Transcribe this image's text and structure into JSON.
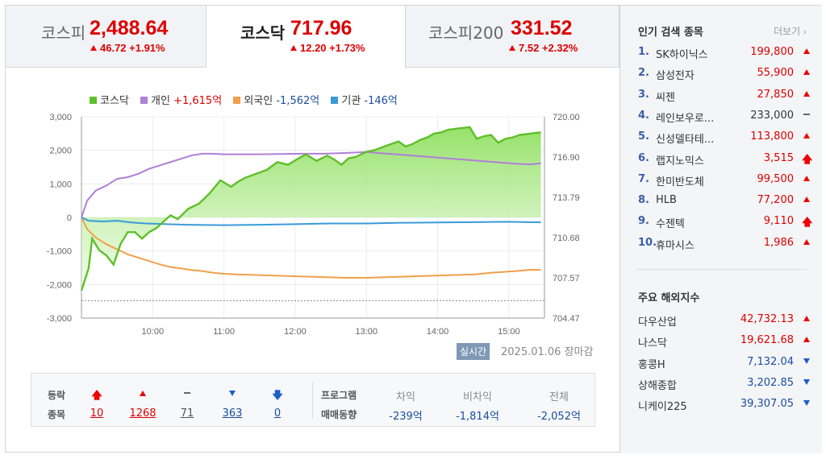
{
  "tabs": [
    {
      "name": "코스피",
      "value": "2,488.64",
      "change": "46.72 +1.91%"
    },
    {
      "name": "코스닥",
      "value": "717.96",
      "change": "12.20 +1.73%"
    },
    {
      "name": "코스피200",
      "value": "331.52",
      "change": "7.52 +2.32%"
    }
  ],
  "legend": {
    "kosdaq": "코스닥",
    "individual": "개인",
    "individual_val": "+1,615억",
    "foreign": "외국인",
    "foreign_val": "-1,562억",
    "institution": "기관",
    "institution_val": "-146억"
  },
  "realtime_badge": "실시간",
  "date_text": "2025.01.06 장마감",
  "breadth": {
    "label1": "등락",
    "label2": "종목",
    "counts": [
      "10",
      "1268",
      "71",
      "363",
      "0"
    ]
  },
  "program": {
    "label1": "프로그램",
    "label2": "매매동향",
    "headers": [
      "차익",
      "비차익",
      "전체"
    ],
    "values": [
      "-239억",
      "-1,814억",
      "-2,052억"
    ]
  },
  "popular": {
    "title": "인기 검색 종목",
    "more": "더보기",
    "items": [
      {
        "rank": "1.",
        "name": "SK하이닉스",
        "price": "199,800",
        "mark": "up"
      },
      {
        "rank": "2.",
        "name": "삼성전자",
        "price": "55,900",
        "mark": "up"
      },
      {
        "rank": "3.",
        "name": "씨젠",
        "price": "27,850",
        "mark": "up"
      },
      {
        "rank": "4.",
        "name": "레인보우로...",
        "price": "233,000",
        "mark": "flat"
      },
      {
        "rank": "5.",
        "name": "신성델타테...",
        "price": "113,800",
        "mark": "up"
      },
      {
        "rank": "6.",
        "name": "랩지노믹스",
        "price": "3,515",
        "mark": "upper"
      },
      {
        "rank": "7.",
        "name": "한미반도체",
        "price": "99,500",
        "mark": "up"
      },
      {
        "rank": "8.",
        "name": "HLB",
        "price": "77,200",
        "mark": "up"
      },
      {
        "rank": "9.",
        "name": "수젠텍",
        "price": "9,110",
        "mark": "upper"
      },
      {
        "rank": "10.",
        "name": "휴마시스",
        "price": "1,986",
        "mark": "up"
      }
    ]
  },
  "overseas": {
    "title": "주요 해외지수",
    "items": [
      {
        "name": "다우산업",
        "price": "42,732.13",
        "dir": "up"
      },
      {
        "name": "나스닥",
        "price": "19,621.68",
        "dir": "up"
      },
      {
        "name": "홍콩H",
        "price": "7,132.04",
        "dir": "down"
      },
      {
        "name": "상해종합",
        "price": "3,202.85",
        "dir": "down"
      },
      {
        "name": "니케이225",
        "price": "39,307.05",
        "dir": "down"
      }
    ]
  },
  "colors": {
    "kosdaq": "#5fbf2a",
    "individual": "#b07fd8",
    "foreign": "#f0a04b",
    "institution": "#3a9ad9",
    "up": "#dd0000",
    "down": "#1a4ea0"
  },
  "chart_data": {
    "type": "line",
    "left_axis_ticks": [
      "3,000",
      "2,000",
      "1,000",
      "0",
      "-1,000",
      "-2,000",
      "-3,000"
    ],
    "right_axis_ticks": [
      "720.00",
      "716.90",
      "713.79",
      "710.68",
      "707.57",
      "704.47"
    ],
    "x_ticks": [
      "10:00",
      "11:00",
      "12:00",
      "13:00",
      "14:00",
      "15:00"
    ],
    "left_ylim": [
      -3000,
      3000
    ],
    "right_ylim": [
      704.47,
      720.0
    ],
    "grid": true,
    "legend_position": "top-left",
    "series": [
      {
        "name": "코스닥",
        "axis": "right",
        "area": true,
        "x": [
          9.0,
          9.1,
          9.15,
          9.25,
          9.35,
          9.45,
          9.55,
          9.65,
          9.75,
          9.85,
          9.95,
          10.05,
          10.15,
          10.25,
          10.35,
          10.5,
          10.65,
          10.8,
          10.95,
          11.1,
          11.2,
          11.3,
          11.4,
          11.5,
          11.6,
          11.75,
          11.9,
          12.05,
          12.15,
          12.3,
          12.45,
          12.55,
          12.65,
          12.75,
          12.85,
          13.0,
          13.1,
          13.2,
          13.3,
          13.45,
          13.55,
          13.65,
          13.75,
          13.85,
          13.95,
          14.05,
          14.15,
          14.3,
          14.45,
          14.55,
          14.65,
          14.75,
          14.85,
          14.95,
          15.05,
          15.15,
          15.3,
          15.45
        ],
        "values": [
          706.6,
          708.3,
          710.6,
          709.7,
          709.3,
          708.6,
          710.2,
          711.1,
          711.1,
          710.6,
          711.1,
          711.4,
          711.9,
          712.4,
          712.1,
          712.9,
          713.3,
          714.1,
          715.1,
          714.6,
          715.0,
          715.3,
          715.5,
          715.7,
          715.9,
          716.5,
          716.3,
          716.8,
          717.1,
          716.6,
          717.0,
          716.7,
          716.3,
          716.8,
          716.9,
          717.3,
          717.4,
          717.6,
          717.8,
          718.1,
          717.7,
          717.9,
          718.2,
          718.4,
          718.7,
          718.8,
          719.0,
          719.1,
          719.2,
          718.3,
          718.5,
          718.6,
          718.0,
          718.3,
          718.4,
          718.6,
          718.7,
          718.8
        ]
      },
      {
        "name": "개인",
        "axis": "left",
        "x": [
          9.0,
          9.08,
          9.2,
          9.35,
          9.5,
          9.65,
          9.8,
          9.95,
          10.1,
          10.25,
          10.4,
          10.55,
          10.7,
          10.85,
          11.0,
          11.2,
          11.5,
          11.8,
          12.1,
          12.4,
          12.7,
          13.0,
          13.3,
          13.6,
          13.9,
          14.2,
          14.5,
          14.8,
          15.1,
          15.3,
          15.45
        ],
        "values": [
          0,
          500,
          800,
          950,
          1150,
          1200,
          1300,
          1450,
          1550,
          1650,
          1750,
          1850,
          1900,
          1900,
          1880,
          1880,
          1880,
          1890,
          1900,
          1900,
          1920,
          1950,
          1900,
          1850,
          1800,
          1750,
          1700,
          1650,
          1600,
          1580,
          1615
        ]
      },
      {
        "name": "외국인",
        "axis": "left",
        "x": [
          9.0,
          9.08,
          9.2,
          9.35,
          9.5,
          9.65,
          9.8,
          9.95,
          10.1,
          10.25,
          10.4,
          10.55,
          10.7,
          10.85,
          11.0,
          11.2,
          11.5,
          11.8,
          12.1,
          12.4,
          12.7,
          13.0,
          13.3,
          13.6,
          13.9,
          14.2,
          14.5,
          14.8,
          15.1,
          15.3,
          15.45
        ],
        "values": [
          0,
          -350,
          -600,
          -800,
          -950,
          -1100,
          -1200,
          -1300,
          -1400,
          -1480,
          -1520,
          -1570,
          -1600,
          -1650,
          -1680,
          -1700,
          -1720,
          -1740,
          -1760,
          -1780,
          -1800,
          -1800,
          -1780,
          -1760,
          -1740,
          -1720,
          -1700,
          -1640,
          -1600,
          -1560,
          -1562
        ]
      },
      {
        "name": "기관",
        "axis": "left",
        "x": [
          9.0,
          9.1,
          9.3,
          9.5,
          9.7,
          9.9,
          10.2,
          10.5,
          11.0,
          11.5,
          12.0,
          12.5,
          13.0,
          13.5,
          14.0,
          14.5,
          15.0,
          15.45
        ],
        "values": [
          0,
          -100,
          -120,
          -100,
          -150,
          -180,
          -200,
          -220,
          -230,
          -220,
          -200,
          -180,
          -180,
          -160,
          -150,
          -140,
          -130,
          -146
        ]
      }
    ]
  }
}
